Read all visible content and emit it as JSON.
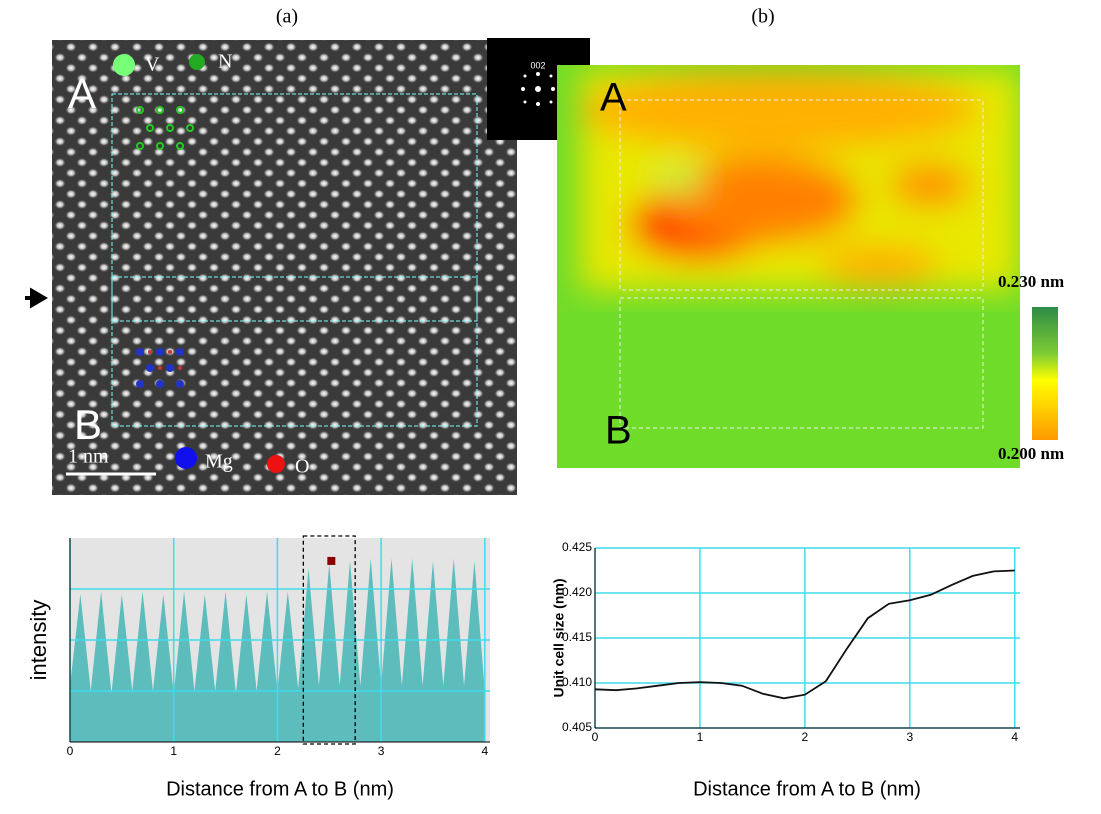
{
  "panels": {
    "a": "(a)",
    "b": "(b)"
  },
  "image_a": {
    "corner_a": "A",
    "corner_b": "B",
    "legend_v": "V",
    "legend_n": "N",
    "scale": "1 nm",
    "legend_mg": "Mg",
    "legend_o": "O",
    "fft": "002"
  },
  "image_b": {
    "corner_a": "A",
    "corner_b": "B",
    "cbar_max": "0.230 nm",
    "cbar_min": "0.200 nm"
  },
  "chart_data": [
    {
      "type": "area",
      "ylabel": "intensity",
      "xlabel": "Distance from A to B (nm)",
      "x": [
        0,
        0.1,
        0.2,
        0.3,
        0.4,
        0.5,
        0.6,
        0.7,
        0.8,
        0.9,
        1,
        1.1,
        1.2,
        1.3,
        1.4,
        1.5,
        1.6,
        1.7,
        1.8,
        1.9,
        2,
        2.1,
        2.2,
        2.3,
        2.4,
        2.5,
        2.6,
        2.7,
        2.8,
        2.9,
        3,
        3.1,
        3.2,
        3.3,
        3.4,
        3.5,
        3.6,
        3.7,
        3.8,
        3.9,
        4
      ],
      "values": [
        1.1,
        2.9,
        1.0,
        2.95,
        0.95,
        2.9,
        1.0,
        2.95,
        1.0,
        2.9,
        0.95,
        2.95,
        1.0,
        2.9,
        1.0,
        2.95,
        0.95,
        2.9,
        1.0,
        2.95,
        1.0,
        2.95,
        1.05,
        3.4,
        1.1,
        3.5,
        1.1,
        3.55,
        1.1,
        3.6,
        1.1,
        3.6,
        1.1,
        3.6,
        1.1,
        3.55,
        1.1,
        3.6,
        1.1,
        3.55,
        1.0
      ],
      "color": "#5dbdbd",
      "background": "#e4e4e4",
      "grid_color": "#3fdcec",
      "xlim": [
        0,
        4.05
      ],
      "xticks": [
        0,
        1,
        2,
        3,
        4
      ],
      "ylim": [
        0,
        4
      ],
      "yticks": [
        1,
        2,
        3
      ],
      "ytick_labels": false,
      "highlight": [
        2.25,
        2.75
      ],
      "marker": [
        2.52,
        3.55
      ],
      "marker_color": "#8b0000"
    },
    {
      "type": "line",
      "ylabel": "Unit cell size (nm)",
      "xlabel": "Distance from A to B (nm)",
      "x": [
        0,
        0.2,
        0.4,
        0.6,
        0.8,
        1,
        1.2,
        1.4,
        1.6,
        1.8,
        2,
        2.2,
        2.4,
        2.6,
        2.8,
        3,
        3.2,
        3.4,
        3.6,
        3.8,
        4
      ],
      "values": [
        0.4093,
        0.4092,
        0.4094,
        0.4097,
        0.41,
        0.4101,
        0.41,
        0.4097,
        0.4088,
        0.4083,
        0.4087,
        0.4102,
        0.4138,
        0.4172,
        0.4188,
        0.4192,
        0.4198,
        0.4209,
        0.4219,
        0.4224,
        0.4225
      ],
      "color": "#111111",
      "background": "#ffffff",
      "grid_color": "#3fdcec",
      "xlim": [
        0,
        4.05
      ],
      "xticks": [
        0,
        1,
        2,
        3,
        4
      ],
      "ylim": [
        0.405,
        0.425
      ],
      "yticks": [
        0.405,
        {
          "value": 0.41,
          "label": "0.410"
        },
        0.415,
        {
          "value": 0.42,
          "label": "0.420"
        },
        0.425
      ]
    }
  ]
}
